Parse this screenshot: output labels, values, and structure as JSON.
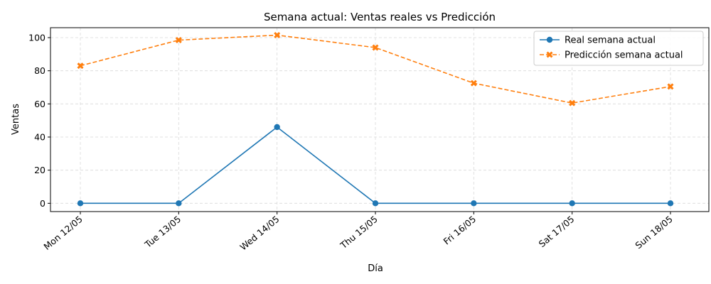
{
  "chart_data": {
    "type": "line",
    "title": "Semana actual: Ventas reales vs Predicción",
    "xlabel": "Día",
    "ylabel": "Ventas",
    "categories": [
      "Mon 12/05",
      "Tue 13/05",
      "Wed 14/05",
      "Thu 15/05",
      "Fri 16/05",
      "Sat 17/05",
      "Sun 18/05"
    ],
    "ylim": [
      -5,
      106
    ],
    "yticks": [
      0,
      20,
      40,
      60,
      80,
      100
    ],
    "grid": true,
    "legend_position": "upper right",
    "series": [
      {
        "name": "Real semana actual",
        "values": [
          0,
          0,
          46,
          0,
          0,
          0,
          0
        ],
        "color": "#1f77b4",
        "line_style": "solid",
        "marker": "circle"
      },
      {
        "name": "Predicción semana actual",
        "values": [
          83,
          98.5,
          101.5,
          94,
          72.5,
          60.5,
          70.5
        ],
        "color": "#ff7f0e",
        "line_style": "dashed",
        "marker": "x"
      }
    ]
  }
}
